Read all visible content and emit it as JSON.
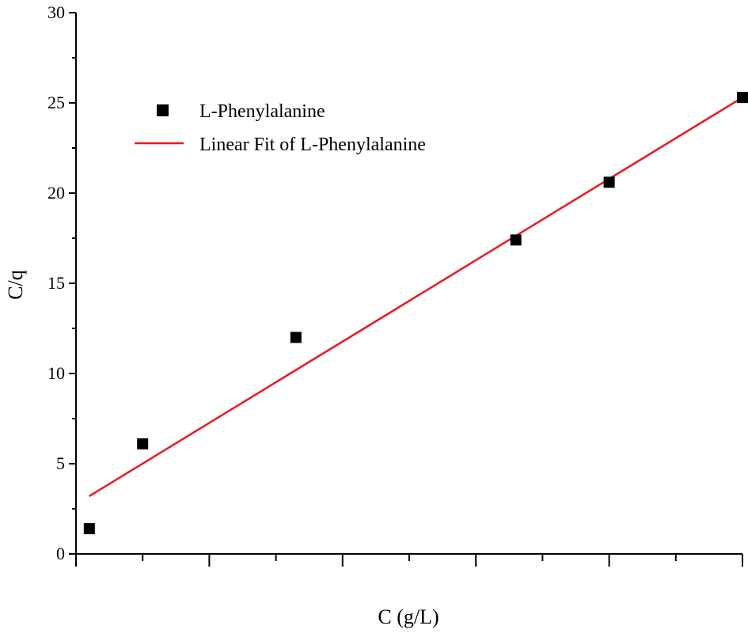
{
  "chart_data": {
    "type": "scatter",
    "title": "",
    "xlabel": "C (g/L)",
    "ylabel": "C/q",
    "xlim": [
      0,
      10
    ],
    "ylim": [
      0,
      30
    ],
    "x_tick_labels_shown": false,
    "y_ticks": [
      0,
      5,
      10,
      15,
      20,
      25,
      30
    ],
    "grid": false,
    "legend_placement": "top-left",
    "series": [
      {
        "name": "L-Phenylalanine",
        "kind": "scatter",
        "marker": "square",
        "color": "#000000",
        "x": [
          0.2,
          1.0,
          3.3,
          6.6,
          8.0,
          10.0
        ],
        "y": [
          1.4,
          6.1,
          12.0,
          17.4,
          20.6,
          25.3
        ]
      },
      {
        "name": "Linear Fit of L-Phenylalanine",
        "kind": "line",
        "color": "#e8191e",
        "x": [
          0.2,
          10.0
        ],
        "y": [
          3.2,
          25.3
        ]
      }
    ]
  }
}
